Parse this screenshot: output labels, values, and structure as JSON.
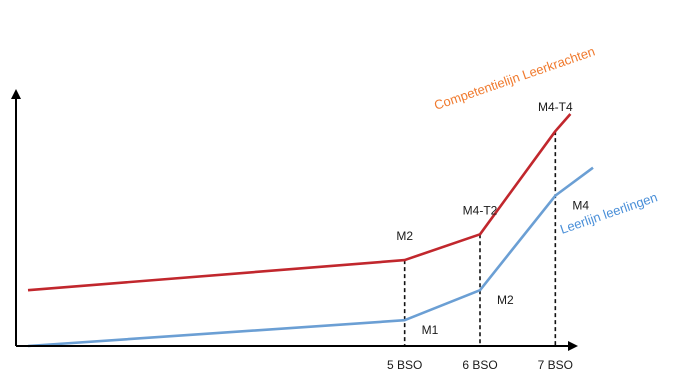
{
  "chart_data": {
    "type": "line",
    "title": "",
    "xlabel": "",
    "ylabel": "",
    "grid": false,
    "categories": [
      "5 BSO",
      "6 BSO",
      "7 BSO"
    ],
    "series": [
      {
        "name": "Competentielijn Leerkrachten",
        "color": "#c1272d",
        "label_color": "#f07a2e",
        "points": [
          {
            "x": 0.0,
            "y": 2.6
          },
          {
            "x": 5.0,
            "y": 4.0,
            "label": "M2"
          },
          {
            "x": 6.0,
            "y": 5.2,
            "label": "M4-T2"
          },
          {
            "x": 7.0,
            "y": 10.0,
            "label": "M4-T4"
          },
          {
            "x": 7.2,
            "y": 10.8
          }
        ]
      },
      {
        "name": "Leerlijn leerlingen",
        "color": "#6b9fd4",
        "label_color": "#4a8fd8",
        "points": [
          {
            "x": 0.0,
            "y": 0.0
          },
          {
            "x": 5.0,
            "y": 1.2,
            "label": "M1"
          },
          {
            "x": 6.0,
            "y": 2.6,
            "label": "M2"
          },
          {
            "x": 7.0,
            "y": 7.0,
            "label": "M4"
          },
          {
            "x": 7.5,
            "y": 8.3
          }
        ]
      }
    ],
    "reference_lines": {
      "x": [
        5.0,
        6.0,
        7.0
      ],
      "style": "dashed",
      "color": "#111111"
    },
    "axis_color": "#000000"
  }
}
